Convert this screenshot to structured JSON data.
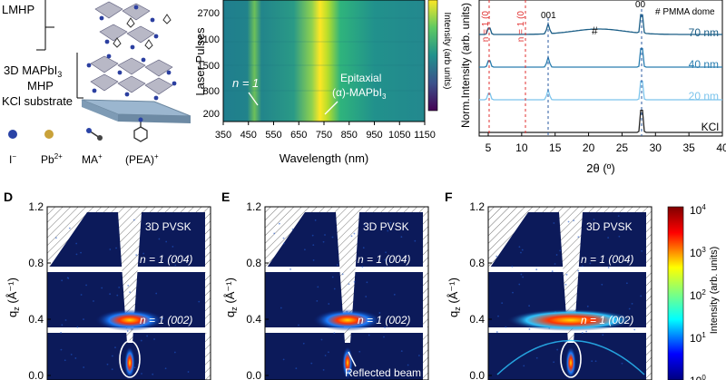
{
  "panelA": {
    "label_lmhp": "LMHP",
    "label_3d": "3D MAPbI",
    "label_3d_sub": "3",
    "label_mhp": "MHP",
    "label_kcl": "KCl substrate",
    "legend": [
      "I",
      "Pb",
      "MA",
      "(PEA)"
    ],
    "legend_sup": [
      "−",
      "2+",
      "+",
      "+"
    ]
  },
  "panelB": {
    "ylabel": "Laser Pulses",
    "xlabel": "Wavelength (nm)",
    "yticks": [
      "2700",
      "2100",
      "1500",
      "800",
      "200"
    ],
    "xticks": [
      "350",
      "450",
      "550",
      "650",
      "750",
      "850",
      "950",
      "1050",
      "1150"
    ],
    "annotation_n1": "n = 1",
    "annotation_epi_1": "Epitaxial",
    "annotation_epi_2": "(α)-MAPbI",
    "annotation_epi_sub": "3",
    "colorbar_label": "Intensity (arb units)"
  },
  "panelC": {
    "ylabel": "Norm.Intensity (arb. units)",
    "xlabel": "2θ (º)",
    "xticks": [
      "5",
      "10",
      "15",
      "20",
      "25",
      "30",
      "35",
      "40"
    ],
    "legend_text": "# PMMA dome",
    "hash": "#",
    "peak_001": "001",
    "peak_00x": "00",
    "n1_labels": [
      "n = 1 (0",
      "n = 1 (0"
    ],
    "traces": [
      "70 nm",
      "40 nm",
      "20 nm",
      "KCl"
    ]
  },
  "gixd": {
    "panels": [
      {
        "letter": "D",
        "label_3d": "3D PVSK",
        "label_004": "n = 1 (004)",
        "label_002": "n = 1 (002)",
        "ylabel": "q",
        "ylabel_sub": "z",
        "ylabel_unit": " (Å⁻¹)",
        "yticks": [
          "1.2",
          "0.8",
          "0.4",
          "0.0"
        ]
      },
      {
        "letter": "E",
        "label_3d": "3D PVSK",
        "label_004": "n = 1 (004)",
        "label_002": "n = 1 (002)",
        "ylabel": "q",
        "ylabel_sub": "z",
        "ylabel_unit": " (Å⁻¹)",
        "yticks": [
          "1.2",
          "0.8",
          "0.4",
          "0.0"
        ],
        "extra": "Reflected beam"
      },
      {
        "letter": "F",
        "label_3d": "3D PVSK",
        "label_004": "n = 1 (004)",
        "label_002": "n = 1 (002)",
        "ylabel": "q",
        "ylabel_sub": "z",
        "ylabel_unit": " (Å⁻¹)",
        "yticks": [
          "1.2",
          "0.8",
          "0.4",
          "0.0"
        ]
      }
    ],
    "colorbar": {
      "label": "Intensity (arb. units)",
      "ticks": [
        "10",
        "10",
        "10",
        "10",
        "10"
      ],
      "exps": [
        "4",
        "3",
        "2",
        "1",
        "0"
      ]
    }
  }
}
